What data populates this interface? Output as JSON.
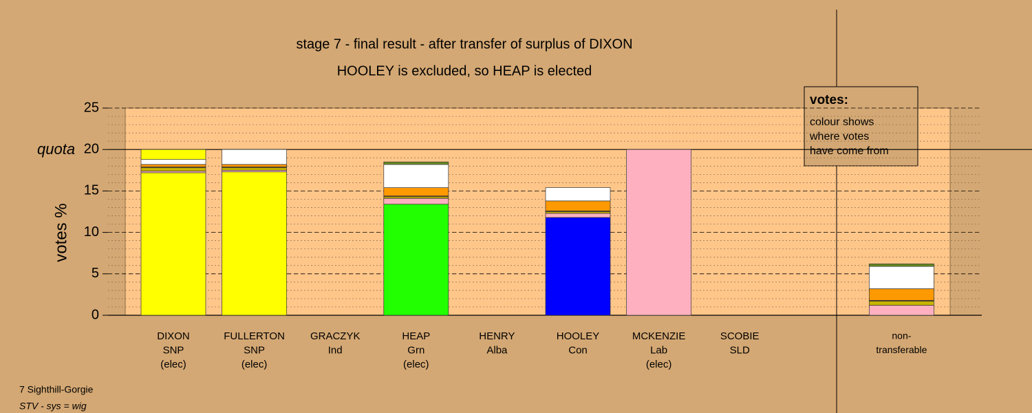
{
  "chart_data": {
    "type": "stacked-bar",
    "title": "stage 7 - final result - after transfer of surplus of DIXON",
    "subtitle": "HOOLEY is excluded, so HEAP is elected",
    "ylabel": "votes %",
    "quota_label": "quota",
    "quota": 20,
    "legend_title": "votes:",
    "legend_lines": [
      "colour shows",
      "where votes",
      "have come from"
    ],
    "footer": "7 Sighthill-Gorgie",
    "footer_note": "STV - sys = wig",
    "categories": [
      [
        "DIXON",
        "SNP",
        "(elec)"
      ],
      [
        "FULLERTON",
        "SNP",
        "(elec)"
      ],
      [
        "GRACZYK",
        "Ind"
      ],
      [
        "HEAP",
        "Grn",
        "(elec)"
      ],
      [
        "HENRY",
        "Alba"
      ],
      [
        "HOOLEY",
        "Con"
      ],
      [
        "MCKENZIE",
        "Lab",
        "(elec)"
      ],
      [
        "SCOBIE",
        "SLD"
      ],
      null,
      [
        "non-",
        "transferable"
      ]
    ],
    "series": [
      {
        "color": "#ffff00",
        "values": [
          17.2,
          17.3,
          0,
          0,
          0,
          0,
          0,
          0,
          null,
          0
        ]
      },
      {
        "color": "#22ff00",
        "values": [
          0,
          0,
          0,
          13.4,
          0,
          0,
          0,
          0,
          null,
          0
        ]
      },
      {
        "color": "#0000ff",
        "values": [
          0,
          0,
          0,
          0,
          0,
          11.8,
          0,
          0,
          null,
          0
        ]
      },
      {
        "color": "#ffb0c0",
        "values": [
          0.2,
          0.2,
          0,
          0.7,
          0,
          0.5,
          20,
          0,
          null,
          1.2
        ]
      },
      {
        "color": "#c8b400",
        "values": [
          0.4,
          0.3,
          0,
          0.2,
          0,
          0.2,
          0,
          0,
          null,
          0.5
        ]
      },
      {
        "color": "#8b6914",
        "values": [
          0.1,
          0.1,
          0,
          0.1,
          0,
          0.1,
          0,
          0,
          null,
          0.1
        ]
      },
      {
        "color": "#ff9900",
        "values": [
          0.3,
          0.3,
          0,
          1.0,
          0,
          1.2,
          0,
          0,
          null,
          1.4
        ]
      },
      {
        "color": "#ffffff",
        "values": [
          0.6,
          1.8,
          0,
          2.8,
          0,
          1.6,
          0,
          0,
          null,
          2.7
        ]
      },
      {
        "color": "#6b8e23",
        "values": [
          0,
          0,
          0,
          0.3,
          0,
          0,
          0,
          0,
          null,
          0.3
        ]
      },
      {
        "color": "#ffff00",
        "values": [
          1.2,
          0,
          0,
          0,
          0,
          0,
          0,
          0,
          null,
          0
        ]
      }
    ],
    "ylim": [
      0,
      25
    ],
    "yticks": [
      0,
      5,
      10,
      15,
      20,
      25
    ],
    "grid": true,
    "minor_grid": true
  }
}
